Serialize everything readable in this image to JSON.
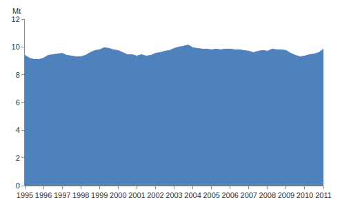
{
  "chart_data": {
    "type": "area",
    "y_label": "Mt",
    "color": "#4f81bd",
    "grid": false,
    "x": [
      1995,
      1995.25,
      1995.5,
      1995.75,
      1996,
      1996.25,
      1996.5,
      1996.75,
      1997,
      1997.25,
      1997.5,
      1997.75,
      1998,
      1998.25,
      1998.5,
      1998.75,
      1999,
      1999.25,
      1999.5,
      1999.75,
      2000,
      2000.25,
      2000.5,
      2000.75,
      2001,
      2001.25,
      2001.5,
      2001.75,
      2002,
      2002.25,
      2002.5,
      2002.75,
      2003,
      2003.25,
      2003.5,
      2003.75,
      2004,
      2004.25,
      2004.5,
      2004.75,
      2005,
      2005.25,
      2005.5,
      2005.75,
      2006,
      2006.25,
      2006.5,
      2006.75,
      2007,
      2007.25,
      2007.5,
      2007.75,
      2008,
      2008.25,
      2008.5,
      2008.75,
      2009,
      2009.25,
      2009.5,
      2009.75,
      2010,
      2010.25,
      2010.5,
      2010.75,
      2011
    ],
    "values": [
      9.4,
      9.2,
      9.1,
      9.1,
      9.2,
      9.4,
      9.45,
      9.5,
      9.55,
      9.4,
      9.35,
      9.3,
      9.3,
      9.4,
      9.6,
      9.75,
      9.8,
      9.95,
      9.9,
      9.8,
      9.75,
      9.6,
      9.45,
      9.45,
      9.35,
      9.45,
      9.35,
      9.4,
      9.55,
      9.6,
      9.7,
      9.75,
      9.9,
      10.0,
      10.05,
      10.15,
      9.95,
      9.9,
      9.85,
      9.85,
      9.8,
      9.85,
      9.8,
      9.85,
      9.85,
      9.8,
      9.8,
      9.75,
      9.7,
      9.6,
      9.7,
      9.75,
      9.7,
      9.85,
      9.8,
      9.8,
      9.75,
      9.55,
      9.4,
      9.3,
      9.35,
      9.45,
      9.5,
      9.6,
      9.85
    ],
    "xlim": [
      1995,
      2011
    ],
    "xticks": [
      1995,
      1996,
      1997,
      1998,
      1999,
      2000,
      2001,
      2002,
      2003,
      2004,
      2005,
      2006,
      2007,
      2008,
      2009,
      2010,
      2011
    ],
    "ylim": [
      0,
      12
    ],
    "yticks": [
      0,
      2,
      4,
      6,
      8,
      10,
      12
    ]
  }
}
